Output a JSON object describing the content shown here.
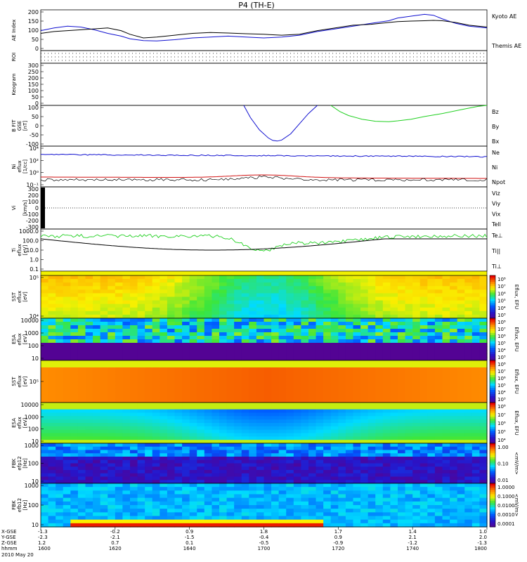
{
  "title": "P4 (TH-E)",
  "date_label": "2010 May 20",
  "colors": {
    "blue": "#1010d0",
    "green": "#20d020",
    "red": "#d01010",
    "black": "#000000"
  },
  "chart_data": [
    {
      "type": "line",
      "ylabel": "AE Index",
      "yticks": [
        "200",
        "150",
        "100",
        "50",
        "0"
      ],
      "ylim": [
        -15,
        210
      ],
      "legend": [
        {
          "label": "Kyoto AE",
          "color": "blue"
        },
        {
          "label": "Themis AE",
          "color": "black"
        }
      ],
      "series": [
        {
          "color": "blue",
          "x": [
            0,
            0.03,
            0.06,
            0.09,
            0.12,
            0.15,
            0.18,
            0.2,
            0.23,
            0.26,
            0.3,
            0.34,
            0.38,
            0.42,
            0.46,
            0.5,
            0.54,
            0.58,
            0.62,
            0.66,
            0.7,
            0.74,
            0.78,
            0.8,
            0.83,
            0.86,
            0.88,
            0.9,
            0.93,
            0.96,
            1.0
          ],
          "y": [
            95,
            110,
            120,
            115,
            100,
            80,
            65,
            50,
            40,
            38,
            45,
            55,
            60,
            65,
            60,
            55,
            60,
            70,
            90,
            105,
            120,
            135,
            150,
            165,
            175,
            185,
            180,
            160,
            135,
            120,
            110
          ]
        },
        {
          "color": "black",
          "x": [
            0,
            0.03,
            0.06,
            0.09,
            0.12,
            0.15,
            0.18,
            0.2,
            0.23,
            0.26,
            0.3,
            0.34,
            0.38,
            0.42,
            0.46,
            0.5,
            0.54,
            0.58,
            0.62,
            0.66,
            0.7,
            0.74,
            0.78,
            0.8,
            0.83,
            0.86,
            0.88,
            0.9,
            0.93,
            0.96,
            1.0
          ],
          "y": [
            80,
            90,
            95,
            100,
            105,
            110,
            95,
            75,
            55,
            60,
            70,
            80,
            85,
            82,
            78,
            75,
            70,
            75,
            95,
            110,
            125,
            130,
            140,
            145,
            148,
            150,
            152,
            150,
            140,
            125,
            115
          ]
        }
      ]
    },
    {
      "type": "line",
      "ylabel": "ROI",
      "yticks": [],
      "series": []
    },
    {
      "type": "line",
      "ylabel": "Keogram",
      "yticks": [
        "300",
        "250",
        "200",
        "150",
        "100",
        "50",
        "0"
      ],
      "ylim": [
        0,
        300
      ],
      "series": []
    },
    {
      "type": "line",
      "ylabel": "B FIT",
      "ylabel_unit": "[nT]",
      "ylabel_coord": "GSE",
      "yticks": [
        "100",
        "50",
        "0",
        "-50",
        "-100"
      ],
      "ylim": [
        -100,
        100
      ],
      "legend": [
        {
          "label": "Bz",
          "color": "red"
        },
        {
          "label": "By",
          "color": "green"
        },
        {
          "label": "Bx",
          "color": "blue"
        }
      ],
      "series": [
        {
          "color": "blue",
          "x": [
            0.455,
            0.47,
            0.49,
            0.51,
            0.52,
            0.53,
            0.54,
            0.56,
            0.58,
            0.6,
            0.62
          ],
          "y": [
            100,
            40,
            -20,
            -60,
            -72,
            -75,
            -70,
            -40,
            10,
            60,
            100
          ]
        },
        {
          "color": "green",
          "x": [
            0.65,
            0.67,
            0.69,
            0.72,
            0.75,
            0.78,
            0.8,
            0.83,
            0.86,
            0.9,
            0.94,
            0.98,
            1.0
          ],
          "y": [
            100,
            70,
            50,
            32,
            22,
            20,
            24,
            32,
            45,
            60,
            78,
            95,
            100
          ]
        }
      ]
    },
    {
      "type": "line",
      "ylabel": "Ni",
      "ylabel_unit": "[1/cc]",
      "ylabel_coord": "eflux",
      "yticks": [
        "10⁴",
        "10²",
        "10⁰",
        "10⁻¹"
      ],
      "legend": [
        {
          "label": "Ne",
          "color": "red"
        },
        {
          "label": "Ni",
          "color": "black"
        },
        {
          "label": "Npot",
          "color": "blue"
        }
      ]
    },
    {
      "type": "line",
      "ylabel": "Vi",
      "ylabel_unit": "[km/s]",
      "yticks": [
        "300",
        "200",
        "100",
        "0",
        "-100",
        "-200",
        "-300"
      ],
      "ylim": [
        -350,
        350
      ],
      "legend": [
        {
          "label": "Viz",
          "color": "red"
        },
        {
          "label": "Viy",
          "color": "green"
        },
        {
          "label": "Vix",
          "color": "blue"
        },
        {
          "label": "Tell",
          "color": "black"
        }
      ]
    },
    {
      "type": "line",
      "ylabel": "Ti",
      "ylabel_unit": "[eV]",
      "ylabel_coord": "eflux",
      "yticks": [
        "1000.0",
        "100.0",
        "10.0",
        "1.0",
        "0.1"
      ],
      "legend": [
        {
          "label": "Te⊥",
          "color": "red"
        },
        {
          "label": "Ti||",
          "color": "green"
        },
        {
          "label": "Ti⊥",
          "color": "blue"
        }
      ]
    },
    {
      "type": "heatmap",
      "ylabel": "SST",
      "ylabel_unit": "[eV]",
      "ylabel_coord": "eflux",
      "yticks": [
        "10⁵",
        "10⁴"
      ],
      "colorbar": {
        "label": "Eflux, EFU",
        "ticks": [
          "10⁸",
          "10⁷",
          "10⁶",
          "10⁵",
          "10⁴",
          "10³"
        ]
      }
    },
    {
      "type": "heatmap",
      "ylabel": "ESA",
      "ylabel_unit": "[eV]",
      "ylabel_coord": "eflux",
      "yticks": [
        "10000",
        "1000",
        "100",
        "10"
      ],
      "colorbar": {
        "label": "Eflux, EFU",
        "ticks": [
          "10⁸",
          "10⁷",
          "10⁶",
          "10⁵",
          "10⁴",
          "10³"
        ]
      }
    },
    {
      "type": "heatmap",
      "ylabel": "SST",
      "ylabel_unit": "[eV]",
      "ylabel_coord": "eflux",
      "yticks": [
        "10⁵"
      ],
      "colorbar": {
        "label": "Eflux, EFU",
        "ticks": [
          "10⁸",
          "10⁷",
          "10⁶",
          "10⁵",
          "10⁴",
          "10³"
        ]
      }
    },
    {
      "type": "heatmap",
      "ylabel": "ESA",
      "ylabel_unit": "[eV]",
      "ylabel_coord": "eflux",
      "yticks": [
        "10000",
        "1000",
        "100",
        "10"
      ],
      "colorbar": {
        "label": "Eflux, EFU",
        "ticks": [
          "10⁸",
          "10⁷",
          "10⁶",
          "10⁵",
          "10⁴"
        ]
      }
    },
    {
      "type": "heatmap",
      "ylabel": "FBK",
      "ylabel_unit": "[Hz]",
      "ylabel_coord": "efp12",
      "yticks": [
        "1000",
        "100",
        "10"
      ],
      "colorbar": {
        "label": "<mV/m>",
        "ticks": [
          "1.00",
          "0.10",
          "0.01"
        ]
      }
    },
    {
      "type": "heatmap",
      "ylabel": "FBK",
      "ylabel_unit": "[Hz]",
      "ylabel_coord": "efb12",
      "yticks": [
        "1000",
        "100",
        "10"
      ],
      "colorbar": {
        "label": "<mV/m>",
        "ticks": [
          "1.0000",
          "0.1000",
          "0.0100",
          "0.0010",
          "0.0001"
        ]
      }
    }
  ],
  "time_axis": {
    "row_labels": [
      "X-GSE",
      "Y-GSE",
      "Z-GSE",
      "hhmm"
    ],
    "columns": [
      {
        "x_gse": "-1.3",
        "y_gse": "-2.3",
        "z_gse": "1.2",
        "hhmm": "1600"
      },
      {
        "x_gse": "-0.2",
        "y_gse": "-2.1",
        "z_gse": "0.7",
        "hhmm": "1620"
      },
      {
        "x_gse": "0.9",
        "y_gse": "-1.5",
        "z_gse": "0.1",
        "hhmm": "1640"
      },
      {
        "x_gse": "1.8",
        "y_gse": "-0.4",
        "z_gse": "-0.5",
        "hhmm": "1700"
      },
      {
        "x_gse": "1.7",
        "y_gse": "0.9",
        "z_gse": "-0.9",
        "hhmm": "1720"
      },
      {
        "x_gse": "1.4",
        "y_gse": "2.1",
        "z_gse": "-1.2",
        "hhmm": "1740"
      },
      {
        "x_gse": "1.0",
        "y_gse": "2.0",
        "z_gse": "-1.3",
        "hhmm": "1800"
      }
    ]
  }
}
